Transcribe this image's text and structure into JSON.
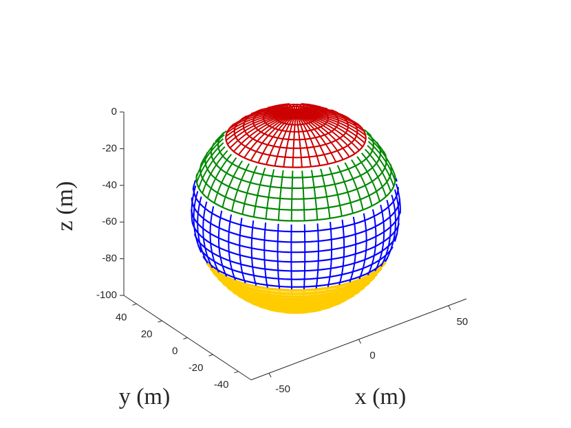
{
  "chart_data": {
    "type": "sphere3d",
    "xlabel": "x (m)",
    "ylabel": "y (m)",
    "zlabel": "z (m)",
    "xlim": [
      -60,
      60
    ],
    "xticks": [
      -50,
      0,
      50
    ],
    "ylim": [
      -50,
      50
    ],
    "yticks": [
      -40,
      -20,
      0,
      20,
      40
    ],
    "zlim": [
      -100,
      0
    ],
    "zticks": [
      -100,
      -80,
      -60,
      -40,
      -20,
      0
    ],
    "band_colors": [
      "#cc0000",
      "#008800",
      "#0000ff",
      "#ffcc00",
      "#ff00ff"
    ]
  }
}
